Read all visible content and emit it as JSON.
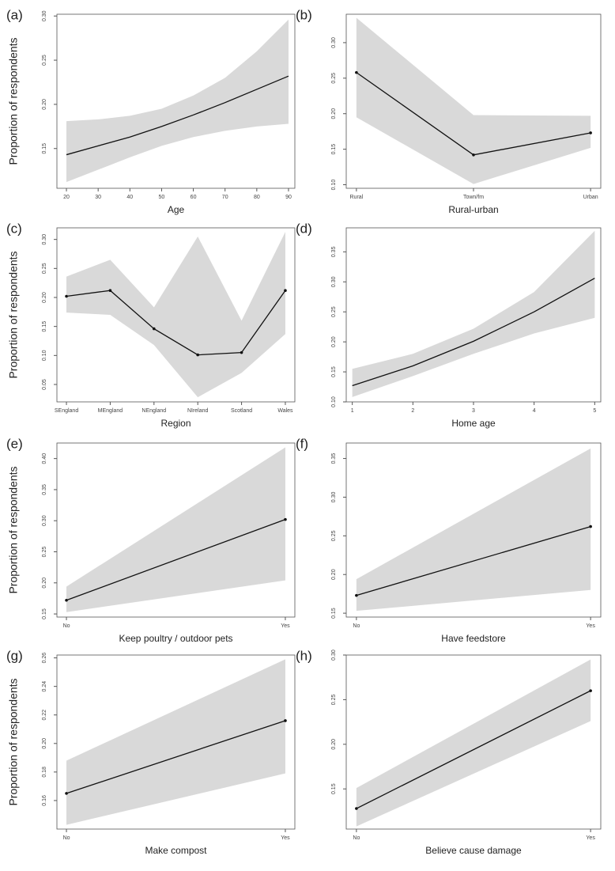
{
  "chart_data": [
    {
      "type": "line",
      "panel": "(a)",
      "ylabel": "Proportion of respondents",
      "xlabel": "Age",
      "x": [
        20,
        30,
        40,
        50,
        60,
        70,
        80,
        90
      ],
      "values": [
        0.143,
        0.153,
        0.163,
        0.175,
        0.188,
        0.202,
        0.217,
        0.232
      ],
      "upper": [
        0.181,
        0.183,
        0.187,
        0.195,
        0.21,
        0.23,
        0.26,
        0.296
      ],
      "lower": [
        0.112,
        0.126,
        0.14,
        0.153,
        0.163,
        0.17,
        0.175,
        0.178
      ],
      "xlim": [
        17,
        92
      ],
      "xticks": [
        20,
        30,
        40,
        50,
        60,
        70,
        80,
        90
      ],
      "ylim": [
        0.105,
        0.302
      ],
      "yticks": [
        0.15,
        {
          "value": 0.2,
          "label": "0.20"
        },
        0.25,
        {
          "value": 0.3,
          "label": "0.30"
        }
      ],
      "color": "#111111",
      "band_color": "#d9d9d9"
    },
    {
      "type": "line",
      "panel": "(b)",
      "xlabel": "Rural-urban",
      "categories": [
        "Rural",
        "Town/fm",
        "Urban"
      ],
      "values": [
        0.258,
        0.142,
        0.173
      ],
      "upper": [
        0.335,
        0.198,
        0.197
      ],
      "lower": [
        0.195,
        0.101,
        0.152
      ],
      "ylim": [
        0.095,
        0.34
      ],
      "yticks": [
        {
          "value": 0.1,
          "label": "0.10"
        },
        0.15,
        {
          "value": 0.2,
          "label": "0.20"
        },
        0.25,
        {
          "value": 0.3,
          "label": "0.30"
        }
      ],
      "color": "#111111",
      "band_color": "#d9d9d9"
    },
    {
      "type": "line",
      "panel": "(c)",
      "ylabel": "Proportion of respondents",
      "xlabel": "Region",
      "categories": [
        "SEngland",
        "MEngland",
        "NEngland",
        "NIreland",
        "Scotland",
        "Wales"
      ],
      "values": [
        0.202,
        0.212,
        0.146,
        0.101,
        0.105,
        0.212
      ],
      "upper": [
        0.236,
        0.265,
        0.183,
        0.305,
        0.16,
        0.313
      ],
      "lower": [
        0.174,
        0.17,
        0.118,
        0.028,
        0.07,
        0.137
      ],
      "ylim": [
        0.02,
        0.32
      ],
      "yticks": [
        0.05,
        {
          "value": 0.1,
          "label": "0.10"
        },
        0.15,
        {
          "value": 0.2,
          "label": "0.20"
        },
        0.25,
        {
          "value": 0.3,
          "label": "0.30"
        }
      ],
      "color": "#111111",
      "band_color": "#d9d9d9"
    },
    {
      "type": "line",
      "panel": "(d)",
      "xlabel": "Home age",
      "x": [
        1,
        2,
        3,
        4,
        5
      ],
      "values": [
        0.127,
        0.16,
        0.201,
        0.25,
        0.306
      ],
      "upper": [
        0.155,
        0.18,
        0.222,
        0.283,
        0.385
      ],
      "lower": [
        0.108,
        0.143,
        0.18,
        0.214,
        0.24
      ],
      "xlim": [
        0.9,
        5.1
      ],
      "xticks": [
        1,
        2,
        3,
        4,
        5
      ],
      "ylim": [
        0.1,
        0.39
      ],
      "yticks": [
        {
          "value": 0.1,
          "label": "0.10"
        },
        0.15,
        {
          "value": 0.2,
          "label": "0.20"
        },
        0.25,
        {
          "value": 0.3,
          "label": "0.30"
        },
        0.35
      ],
      "color": "#111111",
      "band_color": "#d9d9d9"
    },
    {
      "type": "line",
      "panel": "(e)",
      "ylabel": "Proportion of respondents",
      "xlabel": "Keep poultry / outdoor pets",
      "categories": [
        "No",
        "Yes"
      ],
      "values": [
        0.172,
        0.302
      ],
      "upper": [
        0.194,
        0.418
      ],
      "lower": [
        0.153,
        0.204
      ],
      "ylim": [
        0.145,
        0.425
      ],
      "yticks": [
        0.15,
        {
          "value": 0.2,
          "label": "0.20"
        },
        0.25,
        {
          "value": 0.3,
          "label": "0.30"
        },
        0.35,
        {
          "value": 0.4,
          "label": "0.40"
        }
      ],
      "color": "#111111",
      "band_color": "#d9d9d9"
    },
    {
      "type": "line",
      "panel": "(f)",
      "xlabel": "Have feedstore",
      "categories": [
        "No",
        "Yes"
      ],
      "values": [
        0.173,
        0.262
      ],
      "upper": [
        0.194,
        0.363
      ],
      "lower": [
        0.153,
        0.18
      ],
      "ylim": [
        0.145,
        0.37
      ],
      "yticks": [
        0.15,
        {
          "value": 0.2,
          "label": "0.20"
        },
        0.25,
        {
          "value": 0.3,
          "label": "0.30"
        },
        0.35
      ],
      "color": "#111111",
      "band_color": "#d9d9d9"
    },
    {
      "type": "line",
      "panel": "(g)",
      "ylabel": "Proportion of respondents",
      "xlabel": "Make compost",
      "categories": [
        "No",
        "Yes"
      ],
      "values": [
        0.165,
        0.216
      ],
      "upper": [
        0.188,
        0.259
      ],
      "lower": [
        0.143,
        0.179
      ],
      "ylim": [
        0.14,
        0.262
      ],
      "yticks": [
        0.16,
        0.18,
        {
          "value": 0.2,
          "label": "0.20"
        },
        0.22,
        0.24,
        0.26
      ],
      "color": "#111111",
      "band_color": "#d9d9d9"
    },
    {
      "type": "line",
      "panel": "(h)",
      "xlabel": "Believe cause damage",
      "categories": [
        "No",
        "Yes"
      ],
      "values": [
        0.128,
        0.26
      ],
      "upper": [
        0.151,
        0.295
      ],
      "lower": [
        0.108,
        0.226
      ],
      "ylim": [
        0.105,
        0.3
      ],
      "yticks": [
        0.15,
        {
          "value": 0.2,
          "label": "0.20"
        },
        0.25,
        {
          "value": 0.3,
          "label": "0.30"
        }
      ],
      "color": "#111111",
      "band_color": "#d9d9d9"
    }
  ]
}
